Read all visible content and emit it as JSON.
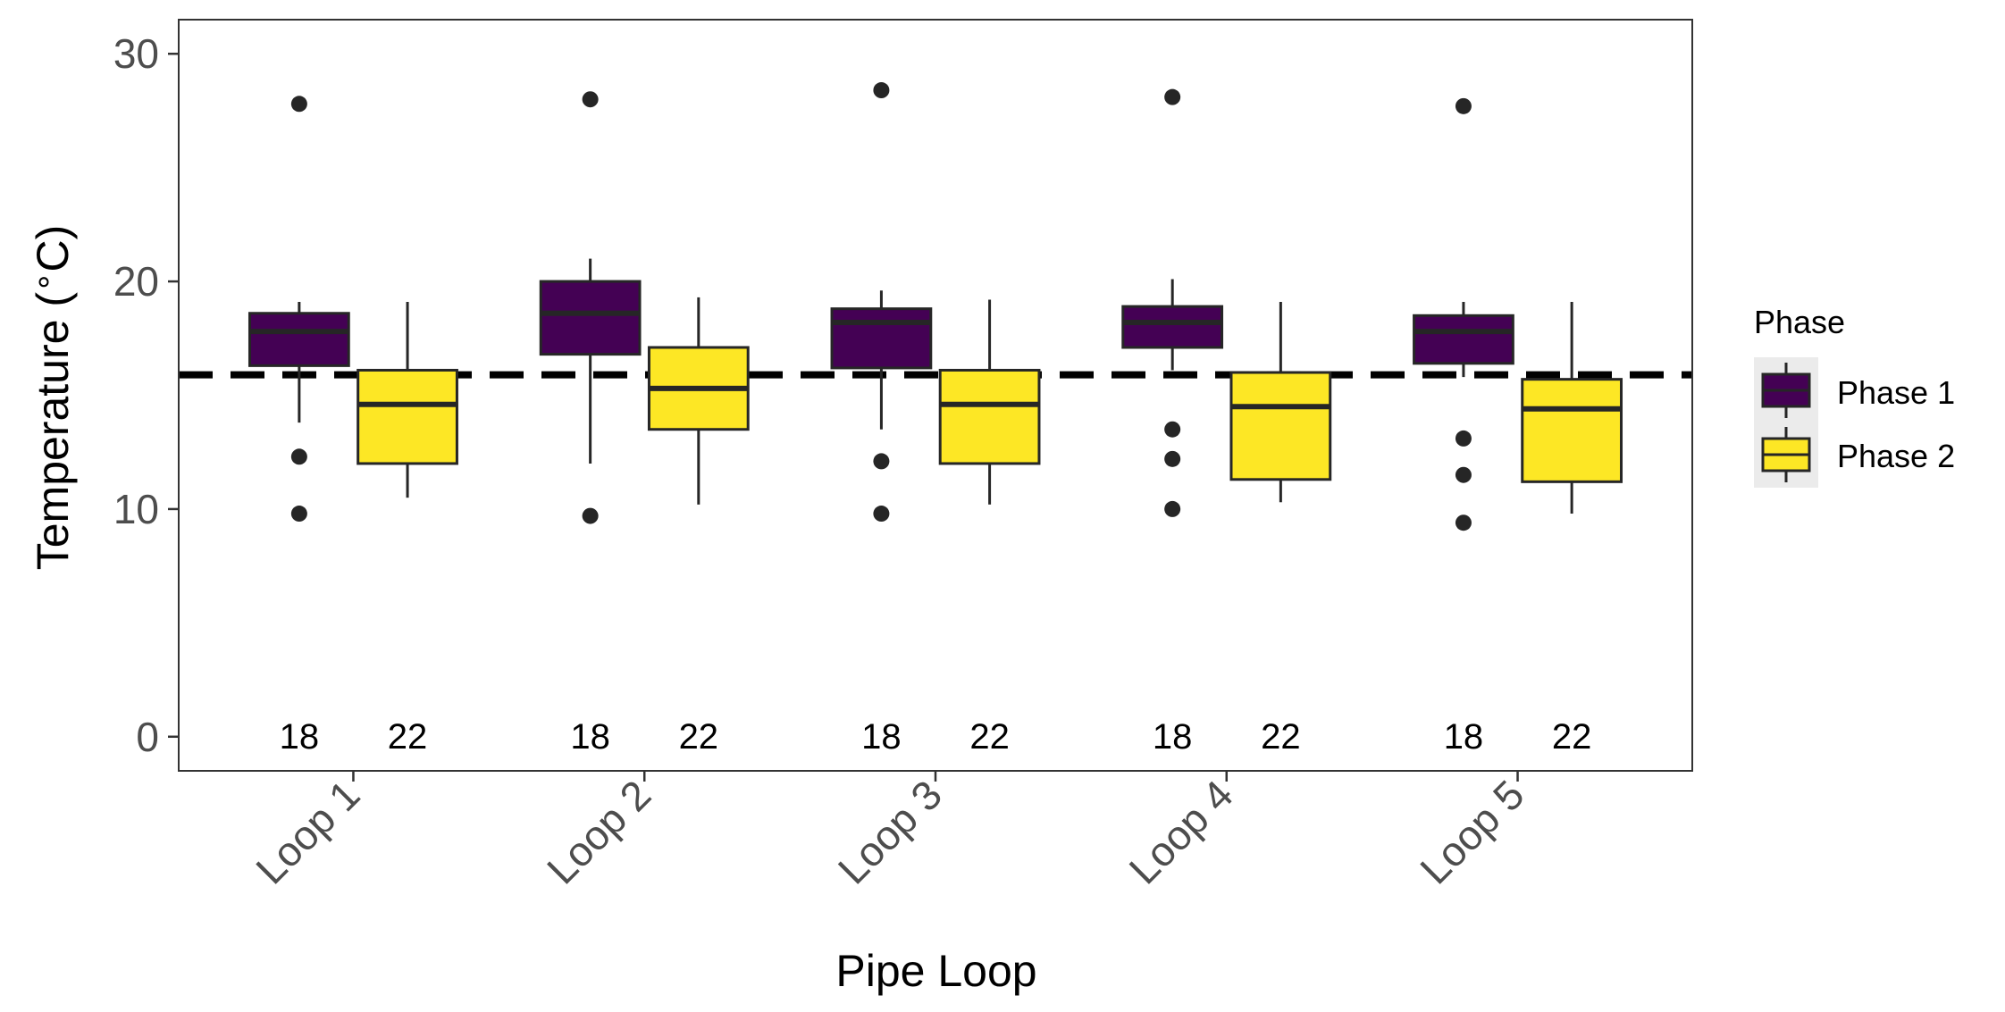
{
  "chart_data": {
    "type": "boxplot",
    "xlabel": "Pipe Loop",
    "ylabel": "Temperature (°C)",
    "ylabel_parts": [
      "Temperature (",
      "∘",
      "C)"
    ],
    "ylim": [
      -1.5,
      31.5
    ],
    "yticks": [
      "0",
      "10",
      "20",
      "30"
    ],
    "ytick_values": [
      0,
      10,
      20,
      30
    ],
    "grid": false,
    "reference_line": {
      "y": 15.9,
      "style": "dashed"
    },
    "legend": {
      "title": "Phase",
      "position": "right",
      "entries": [
        {
          "name": "Phase 1",
          "color": "#440154"
        },
        {
          "name": "Phase 2",
          "color": "#FDE725"
        }
      ]
    },
    "categories": [
      "Loop 1",
      "Loop 2",
      "Loop 3",
      "Loop 4",
      "Loop 5"
    ],
    "series": [
      {
        "name": "Phase 1",
        "color": "#440154",
        "boxes": [
          {
            "whisker_low": 13.8,
            "q1": 16.3,
            "median": 17.8,
            "q3": 18.6,
            "whisker_high": 19.1,
            "outliers": [
              27.8,
              12.3,
              9.8
            ],
            "n": "18"
          },
          {
            "whisker_low": 12.0,
            "q1": 16.8,
            "median": 18.6,
            "q3": 20.0,
            "whisker_high": 21.0,
            "outliers": [
              28.0,
              9.7
            ],
            "n": "18"
          },
          {
            "whisker_low": 13.5,
            "q1": 16.2,
            "median": 18.2,
            "q3": 18.8,
            "whisker_high": 19.6,
            "outliers": [
              28.4,
              12.1,
              9.8
            ],
            "n": "18"
          },
          {
            "whisker_low": 16.1,
            "q1": 17.1,
            "median": 18.2,
            "q3": 18.9,
            "whisker_high": 20.1,
            "outliers": [
              28.1,
              13.5,
              12.2,
              10.0
            ],
            "n": "18"
          },
          {
            "whisker_low": 15.8,
            "q1": 16.4,
            "median": 17.8,
            "q3": 18.5,
            "whisker_high": 19.1,
            "outliers": [
              27.7,
              13.1,
              11.5,
              9.4
            ],
            "n": "18"
          }
        ]
      },
      {
        "name": "Phase 2",
        "color": "#FDE725",
        "boxes": [
          {
            "whisker_low": 10.5,
            "q1": 12.0,
            "median": 14.6,
            "q3": 16.1,
            "whisker_high": 19.1,
            "outliers": [],
            "n": "22"
          },
          {
            "whisker_low": 10.2,
            "q1": 13.5,
            "median": 15.3,
            "q3": 17.1,
            "whisker_high": 19.3,
            "outliers": [],
            "n": "22"
          },
          {
            "whisker_low": 10.2,
            "q1": 12.0,
            "median": 14.6,
            "q3": 16.1,
            "whisker_high": 19.2,
            "outliers": [],
            "n": "22"
          },
          {
            "whisker_low": 10.3,
            "q1": 11.3,
            "median": 14.5,
            "q3": 16.0,
            "whisker_high": 19.1,
            "outliers": [],
            "n": "22"
          },
          {
            "whisker_low": 9.8,
            "q1": 11.2,
            "median": 14.4,
            "q3": 15.7,
            "whisker_high": 19.1,
            "outliers": [],
            "n": "22"
          }
        ]
      }
    ]
  }
}
